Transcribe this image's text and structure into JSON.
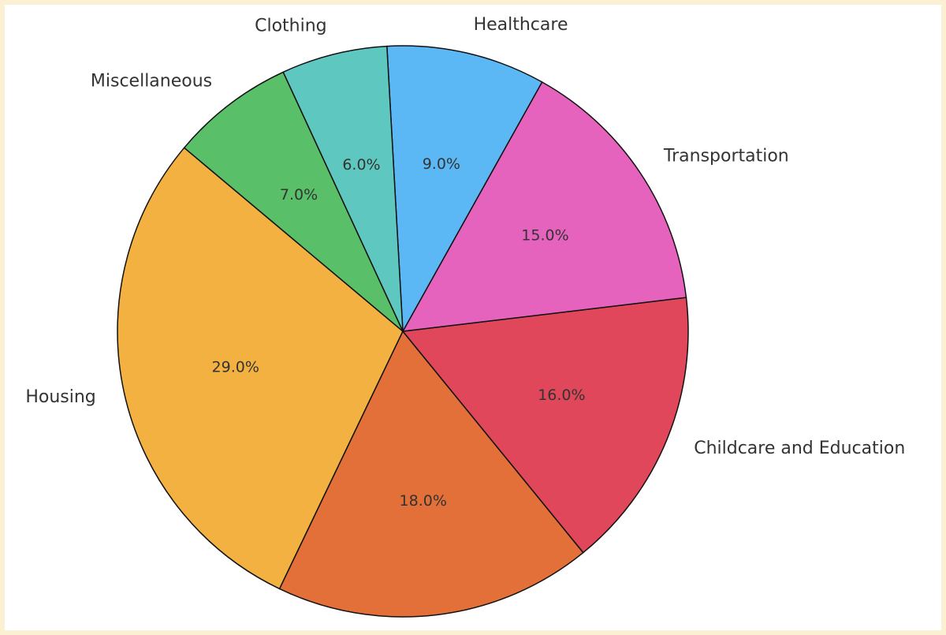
{
  "chart_data": {
    "type": "pie",
    "categories": [
      "Housing",
      null,
      "Childcare and Education",
      "Transportation",
      "Healthcare",
      "Clothing",
      "Miscellaneous"
    ],
    "values": [
      29,
      18,
      16,
      15,
      9,
      6,
      7
    ],
    "value_labels": [
      "29.0%",
      "18.0%",
      "16.0%",
      "15.0%",
      "9.0%",
      "6.0%",
      "7.0%"
    ],
    "colors": [
      "#f2b141",
      "#e37038",
      "#e0475a",
      "#e563bd",
      "#5bb8f5",
      "#5ec8c0",
      "#59bf68"
    ]
  }
}
